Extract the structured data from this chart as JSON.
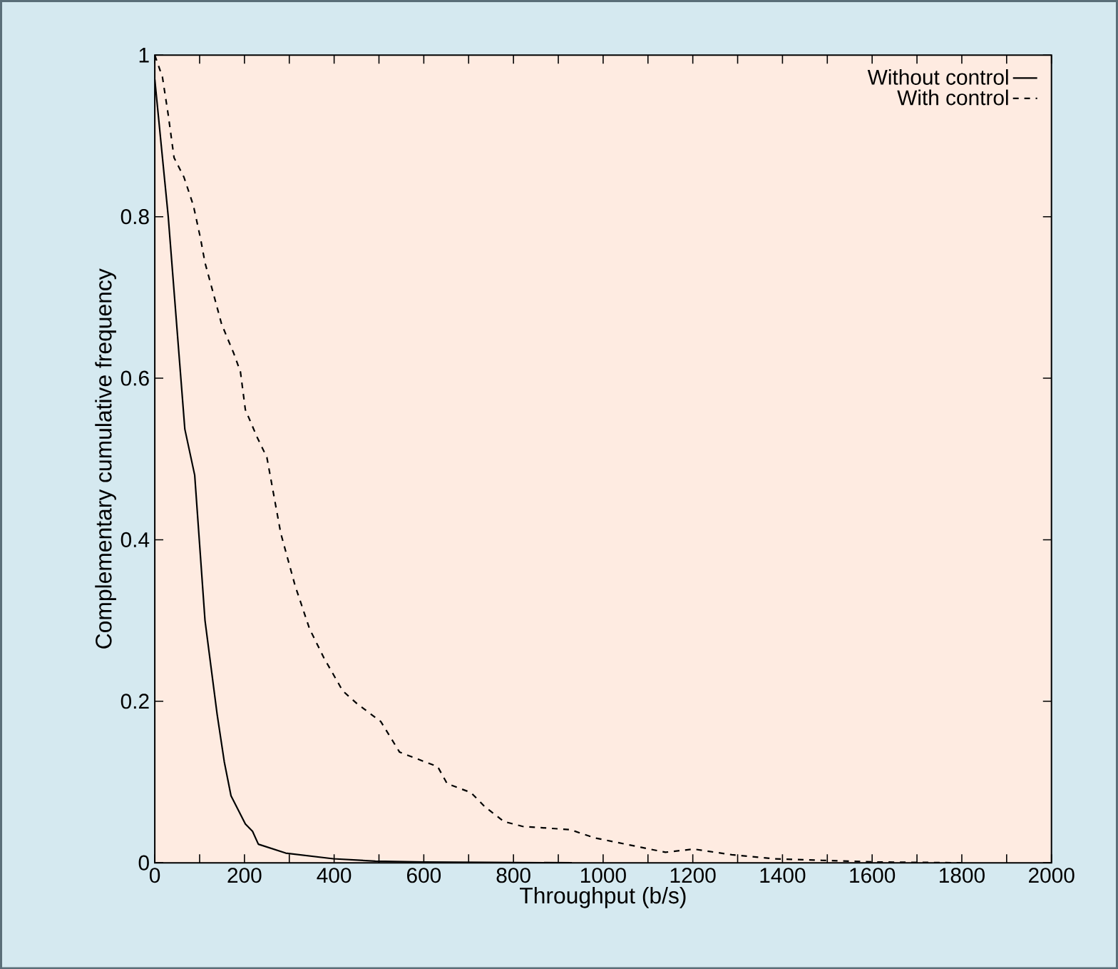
{
  "chart_data": {
    "type": "line",
    "xlabel": "Throughput (b/s)",
    "ylabel": "Complementary cumulative frequency",
    "xlim": [
      0,
      2000
    ],
    "ylim": [
      0,
      1
    ],
    "xticks": [
      0,
      {
        "value": 100,
        "label": null
      },
      200,
      {
        "value": 300,
        "label": null
      },
      400,
      {
        "value": 500,
        "label": null
      },
      600,
      {
        "value": 700,
        "label": null
      },
      800,
      {
        "value": 900,
        "label": null
      },
      1000,
      {
        "value": 1100,
        "label": null
      },
      1200,
      {
        "value": 1300,
        "label": null
      },
      1400,
      {
        "value": 1500,
        "label": null
      },
      1600,
      {
        "value": 1700,
        "label": null
      },
      1800,
      {
        "value": 1900,
        "label": null
      },
      2000
    ],
    "yticks": [
      0,
      0.2,
      0.4,
      0.6,
      0.8,
      1
    ],
    "legend": "top right",
    "grid": false,
    "marker": "none",
    "series": [
      {
        "name": "Without control",
        "color": "#000000",
        "line_style": "solid",
        "x": [
          0,
          30,
          67,
          89,
          112,
          139,
          155,
          170,
          202,
          218,
          231,
          292,
          398,
          492,
          600,
          750,
          930
        ],
        "values": [
          0.97,
          0.8,
          0.537,
          0.48,
          0.3,
          0.184,
          0.125,
          0.083,
          0.048,
          0.039,
          0.023,
          0.012,
          0.005,
          0.002,
          0.001,
          0.0005,
          0
        ]
      },
      {
        "name": "With control",
        "color": "#000000",
        "line_style": "dashed",
        "x": [
          0,
          17,
          30,
          43,
          65,
          86,
          102,
          112,
          133,
          149,
          176,
          191,
          202,
          229,
          250,
          281,
          313,
          345,
          377,
          419,
          451,
          504,
          546,
          631,
          652,
          705,
          737,
          779,
          821,
          927,
          980,
          1086,
          1139,
          1202,
          1287,
          1382,
          1488,
          1604,
          1805
        ],
        "values": [
          1,
          0.973,
          0.926,
          0.873,
          0.849,
          0.814,
          0.773,
          0.743,
          0.7,
          0.667,
          0.631,
          0.608,
          0.561,
          0.526,
          0.502,
          0.408,
          0.343,
          0.29,
          0.254,
          0.213,
          0.197,
          0.175,
          0.137,
          0.119,
          0.098,
          0.087,
          0.069,
          0.051,
          0.045,
          0.041,
          0.031,
          0.019,
          0.013,
          0.017,
          0.01,
          0.005,
          0.003,
          0.001,
          0
        ]
      }
    ]
  }
}
